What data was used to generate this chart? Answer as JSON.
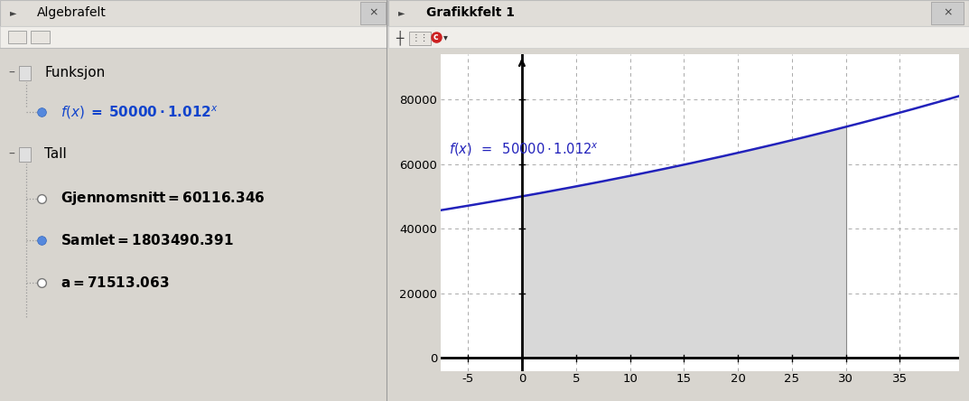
{
  "left_panel_title": "Algebrafelt",
  "right_panel_title": "Grafikkfelt 1",
  "funksjon_label": "Funksjon",
  "tall_label": "Tall",
  "gjennomsnitt_label": "Gjennomsnitt = 60116.346",
  "samlet_label": "Samlet = 1803490.391",
  "a_label": "a = 71513.063",
  "base": 1.012,
  "scale": 50000,
  "x_min": -7.5,
  "x_max": 40.5,
  "y_min": 0,
  "y_max": 90000,
  "shade_x_start": 0,
  "shade_x_end": 30,
  "x_ticks": [
    -5,
    0,
    5,
    10,
    15,
    20,
    25,
    30,
    35
  ],
  "y_ticks": [
    0,
    20000,
    40000,
    60000,
    80000
  ],
  "grid_color": "#aaaaaa",
  "shade_color": "#d8d8d8",
  "line_color": "#2222bb",
  "annotation_color": "#2222bb",
  "left_bg": "#ffffff",
  "right_bg": "#ffffff",
  "title_bar_bg": "#e0ddd8",
  "toolbar_bg": "#f0eeea",
  "fig_bg": "#d8d5cf"
}
